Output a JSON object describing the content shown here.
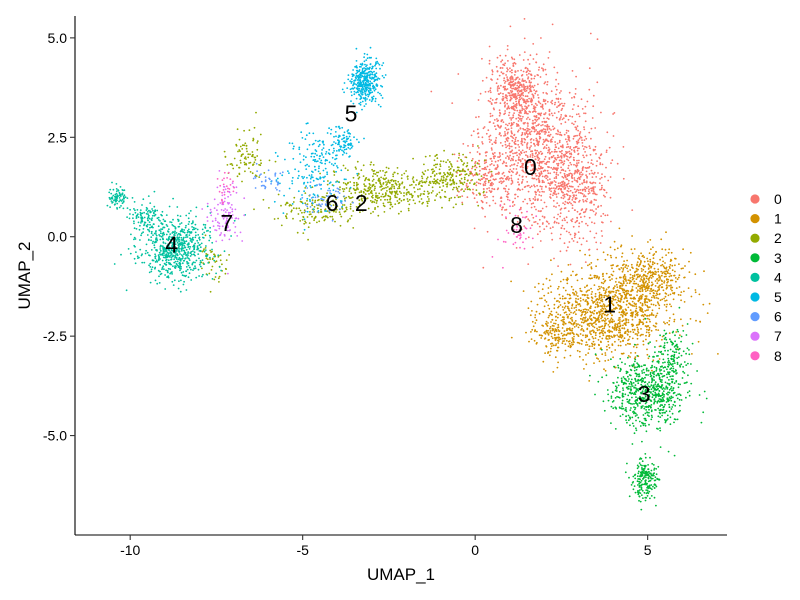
{
  "chart_data": {
    "type": "scatter",
    "title": "",
    "xlabel": "UMAP_1",
    "ylabel": "UMAP_2",
    "xlim": [
      -11.6,
      7.3
    ],
    "ylim": [
      -7.5,
      5.55
    ],
    "xticks": [
      -10,
      -5,
      0,
      5
    ],
    "xtick_labels": [
      "-10",
      "-5",
      "0",
      "5"
    ],
    "yticks": [
      5.0,
      2.5,
      0.0,
      -2.5,
      -5.0
    ],
    "ytick_labels": [
      "5.0",
      "2.5",
      "0.0",
      "-2.5",
      "-5.0"
    ],
    "grid": false,
    "legend": "right",
    "legend_marker": "circle",
    "point_size": "small",
    "series": [
      {
        "name": "0",
        "color": "#F8766D",
        "centroid": [
          1.6,
          1.7
        ],
        "label_position": [
          1.6,
          1.75
        ],
        "cloud": [
          {
            "center": [
              1.7,
              2.2
            ],
            "spread": [
              1.2,
              1.6
            ],
            "weight": 1100
          },
          {
            "center": [
              2.9,
              1.4
            ],
            "spread": [
              0.8,
              1.3
            ],
            "weight": 450
          },
          {
            "center": [
              1.2,
              3.7
            ],
            "spread": [
              0.6,
              0.7
            ],
            "weight": 350
          },
          {
            "center": [
              0.3,
              1.5
            ],
            "spread": [
              0.6,
              0.6
            ],
            "weight": 150
          }
        ]
      },
      {
        "name": "1",
        "color": "#D39200",
        "centroid": [
          3.9,
          -1.7
        ],
        "label_position": [
          3.9,
          -1.7
        ],
        "cloud": [
          {
            "center": [
              3.9,
              -1.9
            ],
            "spread": [
              1.5,
              0.9
            ],
            "weight": 1100
          },
          {
            "center": [
              5.1,
              -1.0
            ],
            "spread": [
              0.8,
              0.6
            ],
            "weight": 350
          },
          {
            "center": [
              2.4,
              -2.4
            ],
            "spread": [
              0.7,
              0.5
            ],
            "weight": 180
          }
        ]
      },
      {
        "name": "2",
        "color": "#93AA00",
        "centroid": [
          -3.3,
          0.8
        ],
        "label_position": [
          -3.3,
          0.85
        ],
        "cloud": [
          {
            "center": [
              -2.6,
              1.2
            ],
            "spread": [
              1.2,
              0.45
            ],
            "weight": 380
          },
          {
            "center": [
              -0.7,
              1.5
            ],
            "spread": [
              0.8,
              0.45
            ],
            "weight": 220
          },
          {
            "center": [
              -4.6,
              0.7
            ],
            "spread": [
              1.0,
              0.35
            ],
            "weight": 160
          },
          {
            "center": [
              -6.6,
              2.0
            ],
            "spread": [
              0.5,
              0.5
            ],
            "weight": 90
          },
          {
            "center": [
              -7.6,
              -0.6
            ],
            "spread": [
              0.4,
              0.5
            ],
            "weight": 50
          }
        ]
      },
      {
        "name": "3",
        "color": "#00BA38",
        "centroid": [
          4.9,
          -3.9
        ],
        "label_position": [
          4.9,
          -3.95
        ],
        "cloud": [
          {
            "center": [
              5.0,
              -3.9
            ],
            "spread": [
              0.9,
              0.7
            ],
            "weight": 650
          },
          {
            "center": [
              4.9,
              -6.1
            ],
            "spread": [
              0.3,
              0.45
            ],
            "weight": 200
          },
          {
            "center": [
              5.7,
              -2.9
            ],
            "spread": [
              0.4,
              0.5
            ],
            "weight": 120
          }
        ]
      },
      {
        "name": "4",
        "color": "#00C19F",
        "centroid": [
          -8.8,
          -0.2
        ],
        "label_position": [
          -8.8,
          -0.2
        ],
        "cloud": [
          {
            "center": [
              -8.7,
              -0.3
            ],
            "spread": [
              0.85,
              0.65
            ],
            "weight": 650
          },
          {
            "center": [
              -10.4,
              1.0
            ],
            "spread": [
              0.22,
              0.2
            ],
            "weight": 80
          },
          {
            "center": [
              -9.6,
              0.5
            ],
            "spread": [
              0.4,
              0.35
            ],
            "weight": 100
          }
        ]
      },
      {
        "name": "5",
        "color": "#00B9E3",
        "centroid": [
          -3.6,
          3.1
        ],
        "label_position": [
          -3.6,
          3.1
        ],
        "cloud": [
          {
            "center": [
              -3.2,
              3.9
            ],
            "spread": [
              0.35,
              0.45
            ],
            "weight": 360
          },
          {
            "center": [
              -4.6,
              1.7
            ],
            "spread": [
              0.7,
              0.8
            ],
            "weight": 200
          },
          {
            "center": [
              -3.8,
              2.4
            ],
            "spread": [
              0.3,
              0.3
            ],
            "weight": 80
          }
        ]
      },
      {
        "name": "6",
        "color": "#619CFF",
        "centroid": [
          -4.1,
          0.8
        ],
        "label_position": [
          -4.15,
          0.85
        ],
        "cloud": [
          {
            "center": [
              -4.3,
              0.9
            ],
            "spread": [
              0.5,
              0.35
            ],
            "weight": 60
          },
          {
            "center": [
              -6.1,
              1.4
            ],
            "spread": [
              0.4,
              0.3
            ],
            "weight": 35
          }
        ]
      },
      {
        "name": "7",
        "color": "#DB72FB",
        "centroid": [
          -7.3,
          0.4
        ],
        "label_position": [
          -7.2,
          0.35
        ],
        "cloud": [
          {
            "center": [
              -7.3,
              0.6
            ],
            "spread": [
              0.35,
              0.55
            ],
            "weight": 100
          }
        ]
      },
      {
        "name": "8",
        "color": "#FF61C3",
        "centroid": [
          1.2,
          0.3
        ],
        "label_position": [
          1.2,
          0.3
        ],
        "cloud": [
          {
            "center": [
              1.2,
              0.2
            ],
            "spread": [
              0.4,
              0.45
            ],
            "weight": 45
          },
          {
            "center": [
              -7.2,
              1.2
            ],
            "spread": [
              0.25,
              0.3
            ],
            "weight": 25
          }
        ]
      }
    ]
  }
}
